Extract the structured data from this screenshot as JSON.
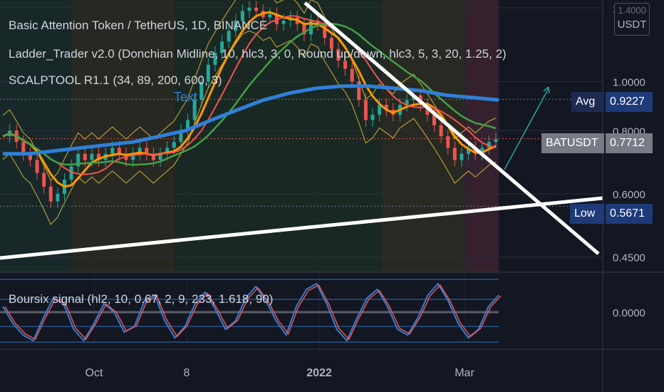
{
  "chart_data": {
    "type": "line",
    "title": "Basic Attention Token / TetherUS, 1D, BINANCE",
    "indicators": [
      "Ladder_Trader v2.0 (Donchian Midline, 10, hlc3, 3, 0, Round up/down, hlc3, 5, 3, 20, 1.25, 2)",
      "SCALPTOOL R1.1 (34, 89, 200, 600, 3)"
    ],
    "oscillator_label": "Boursix signal (hl2, 10, 0.67, 2, 9, 233, 1.618, 90)",
    "annotation_text": "Text",
    "x_ticks": [
      "Oct",
      "8",
      "2022",
      "Mar"
    ],
    "y_ticks": [
      "1.4000",
      "1.0000",
      "0.8000",
      "0.6000",
      "0.4500"
    ],
    "osc_tick": "0.0000",
    "currency": "USDT",
    "price_tags": [
      {
        "label": "Avg",
        "value": "0.9227"
      },
      {
        "label": "BATUSDT",
        "value": "0.7712"
      },
      {
        "label": "Low",
        "value": "0.5671"
      }
    ],
    "close_series": [
      0.78,
      0.8,
      0.76,
      0.72,
      0.7,
      0.66,
      0.62,
      0.58,
      0.6,
      0.64,
      0.68,
      0.72,
      0.7,
      0.72,
      0.7,
      0.72,
      0.74,
      0.72,
      0.7,
      0.72,
      0.74,
      0.72,
      0.7,
      0.72,
      0.74,
      0.76,
      0.8,
      0.84,
      0.92,
      1.0,
      1.08,
      1.14,
      1.2,
      1.26,
      1.32,
      1.38,
      1.4,
      1.38,
      1.34,
      1.36,
      1.3,
      1.32,
      1.34,
      1.3,
      1.24,
      1.32,
      1.3,
      1.22,
      1.16,
      1.1,
      1.06,
      1.0,
      0.92,
      0.84,
      0.86,
      0.9,
      0.88,
      0.86,
      0.9,
      0.92,
      0.94,
      0.9,
      0.86,
      0.82,
      0.78,
      0.74,
      0.7,
      0.72,
      0.74,
      0.72,
      0.74,
      0.76,
      0.77
    ],
    "ma_slow": [
      0.72,
      0.72,
      0.73,
      0.74,
      0.75,
      0.76,
      0.78,
      0.8,
      0.84,
      0.88,
      0.92,
      0.95,
      0.97,
      0.98,
      0.98,
      0.97,
      0.96,
      0.94,
      0.93,
      0.92
    ],
    "line_colors": {
      "candles_up": "#26a69a",
      "candles_down": "#ef5350",
      "donchian": "#d4b83c",
      "ma_fast": "#ef5350",
      "ma_mid": "#43a047",
      "ma_slow": "#2f80d8",
      "ladder_up": "#ff9800",
      "ladder_down": "#26c6da",
      "osc_fast": "#ef5350",
      "osc_slow": "#2f80d8",
      "trendline": "#ffffff",
      "projection": "#26a69a"
    },
    "osc_series": [
      0.02,
      -0.04,
      -0.08,
      -0.1,
      -0.02,
      0.05,
      0.03,
      -0.06,
      -0.1,
      -0.04,
      0.03,
      0.0,
      -0.07,
      -0.05,
      0.04,
      0.06,
      -0.03,
      -0.09,
      -0.05,
      0.03,
      0.07,
      0.01,
      -0.06,
      -0.03,
      0.05,
      0.09,
      0.04,
      -0.03,
      -0.08,
      0.02,
      0.08,
      0.1,
      0.03,
      -0.06,
      -0.1,
      -0.02,
      0.05,
      0.08,
      0.02,
      -0.06,
      -0.08,
      -0.02,
      0.06,
      0.1,
      0.04,
      -0.04,
      -0.09,
      -0.06,
      0.02,
      0.06
    ]
  }
}
